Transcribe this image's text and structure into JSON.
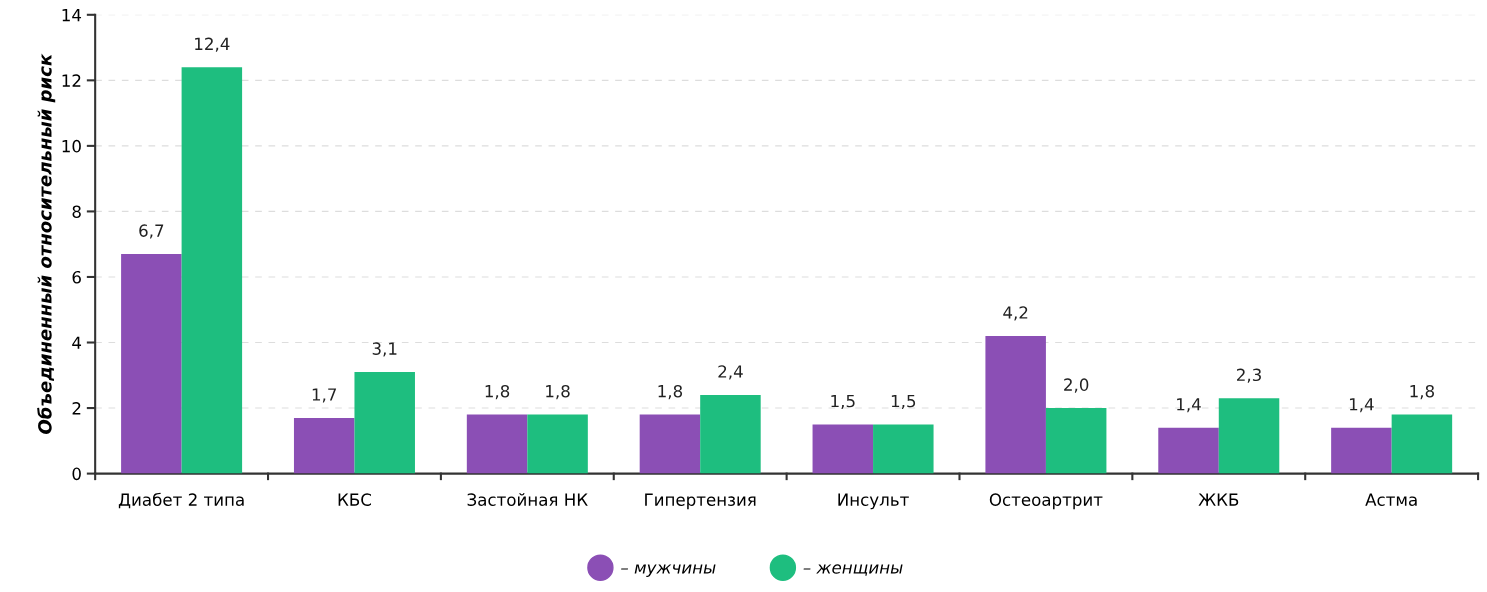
{
  "chart_data": {
    "type": "bar",
    "ylabel": "Объединенный относительный риск",
    "categories": [
      "Диабет 2 типа",
      "КБС",
      "Застойная НК",
      "Гипертензия",
      "Инсульт",
      "Остеоартрит",
      "ЖКБ",
      "Астма"
    ],
    "series": [
      {
        "name": "– мужчины",
        "color": "#8b4fb5",
        "values": [
          6.7,
          1.7,
          1.8,
          1.8,
          1.5,
          4.2,
          1.4,
          1.4
        ],
        "value_labels": [
          "6,7",
          "1,7",
          "1,8",
          "1,8",
          "1,5",
          "4,2",
          "1,4",
          "1,4"
        ]
      },
      {
        "name": "– женщины",
        "color": "#1ebe7f",
        "values": [
          12.4,
          3.1,
          1.8,
          2.4,
          1.5,
          2.0,
          2.3,
          1.8
        ],
        "value_labels": [
          "12,4",
          "3,1",
          "1,8",
          "2,4",
          "1,5",
          "2,0",
          "2,3",
          "1,8"
        ]
      }
    ],
    "ylim": [
      0,
      14
    ],
    "yticks": [
      0,
      2,
      4,
      6,
      8,
      10,
      12,
      14
    ],
    "grid": "y",
    "legend": "bottom"
  }
}
